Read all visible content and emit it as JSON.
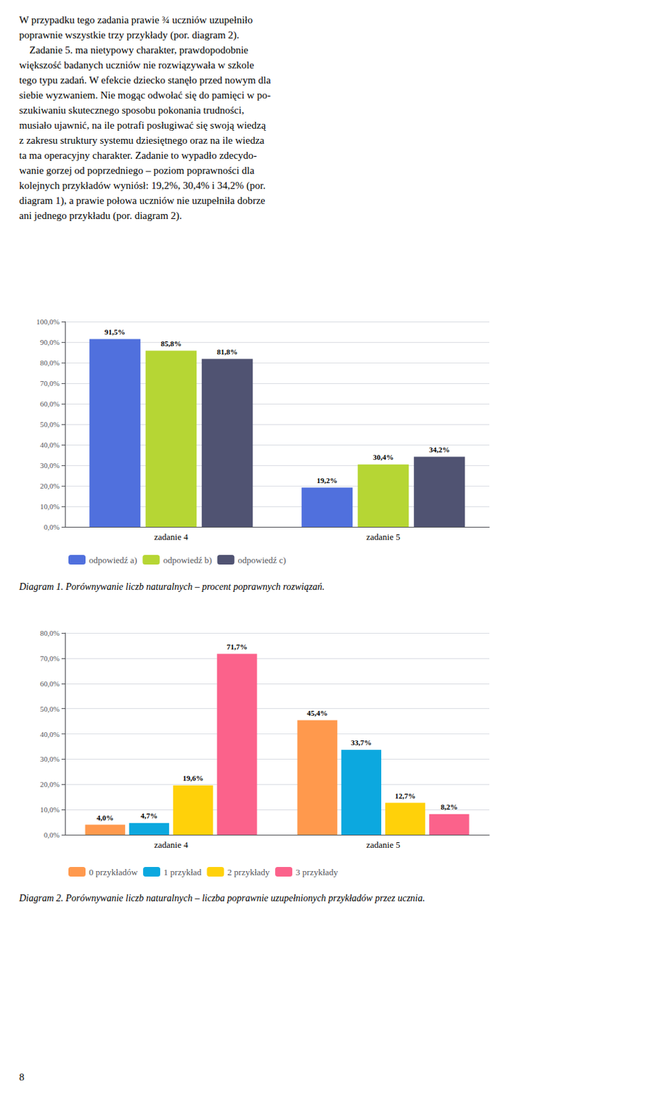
{
  "text": "W przypadku tego zadania prawie ¾ uczniów uzupełniło\npoprawnie wszystkie trzy przykłady (por. diagram 2).\n    Zadanie 5. ma nietypowy charakter, prawdopodobnie\nwiększość badanych uczniów nie rozwiązywała w szkole\ntego typu zadań. W efekcie dziecko stanęło przed nowym dla\nsiebie wyzwaniem. Nie mogąc odwołać się do pamięci w po-\nszukiwaniu skutecznego sposobu pokonania trudności,\nmusiało ujawnić, na ile potrafi posługiwać się swoją wiedzą\nz zakresu struktury systemu dziesiętnego oraz na ile wiedza\nta ma operacyjny charakter. Zadanie to wypadło zdecydo-\nwanie gorzej od poprzedniego – poziom poprawności dla\nkolejnych przykładów wyniósł: 19,2%, 30,4% i 34,2% (por.\ndiagram 1), a prawie połowa uczniów nie uzupełniła dobrze\nani jednego przykładu (por. diagram 2).",
  "page_number": "8",
  "chart_data": [
    {
      "type": "bar",
      "title": "Diagram 1. Porównywanie liczb naturalnych – procent poprawnych rozwiązań.",
      "categories": [
        "zadanie 4",
        "zadanie 5"
      ],
      "series": [
        {
          "name": "odpowiedź a)",
          "values": [
            91.5,
            19.2
          ],
          "value_labels": [
            "91,5%",
            "19,2%"
          ]
        },
        {
          "name": "odpowiedź b)",
          "values": [
            85.8,
            30.4
          ],
          "value_labels": [
            "85,8%",
            "30,4%"
          ]
        },
        {
          "name": "odpowiedź c)",
          "values": [
            81.8,
            34.2
          ],
          "value_labels": [
            "81,8%",
            "34,2%"
          ]
        }
      ],
      "ylim": [
        0,
        100
      ],
      "yticks": [
        {
          "value": 0,
          "label": "0,0%"
        },
        {
          "value": 10,
          "label": "10,0%"
        },
        {
          "value": 20,
          "label": "20,0%"
        },
        {
          "value": 30,
          "label": "30,0%"
        },
        {
          "value": 40,
          "label": "40,0%"
        },
        {
          "value": 50,
          "label": "50,0%"
        },
        {
          "value": 60,
          "label": "60,0%"
        },
        {
          "value": 70,
          "label": "70,0%"
        },
        {
          "value": 80,
          "label": "80,0%"
        },
        {
          "value": 90,
          "label": "90,0%"
        },
        {
          "value": 100,
          "label": "100,0%"
        }
      ],
      "grid": true,
      "legend": "bottom",
      "data_labels": true
    },
    {
      "type": "bar",
      "title": "Diagram 2. Porównywanie liczb naturalnych – liczba poprawnie uzupełnionych przykładów przez ucznia.",
      "categories": [
        "zadanie 4",
        "zadanie 5"
      ],
      "series": [
        {
          "name": "0 przykładów",
          "values": [
            4.0,
            45.4
          ],
          "value_labels": [
            "4,0%",
            "45,4%"
          ]
        },
        {
          "name": "1 przykład",
          "values": [
            4.7,
            33.7
          ],
          "value_labels": [
            "4,7%",
            "33,7%"
          ]
        },
        {
          "name": "2 przykłady",
          "values": [
            19.6,
            12.7
          ],
          "value_labels": [
            "19,6%",
            "12,7%"
          ]
        },
        {
          "name": "3 przykłady",
          "values": [
            71.7,
            8.2
          ],
          "value_labels": [
            "71,7%",
            "8,2%"
          ]
        }
      ],
      "ylim": [
        0,
        80
      ],
      "yticks": [
        {
          "value": 0,
          "label": "0,0%"
        },
        {
          "value": 10,
          "label": "10,0%"
        },
        {
          "value": 20,
          "label": "20,0%"
        },
        {
          "value": 30,
          "label": "30,0%"
        },
        {
          "value": 40,
          "label": "40,0%"
        },
        {
          "value": 50,
          "label": "50,0%"
        },
        {
          "value": 60,
          "label": "60,0%"
        },
        {
          "value": 70,
          "label": "70,0%"
        },
        {
          "value": 80,
          "label": "80,0%"
        }
      ],
      "grid": true,
      "legend": "bottom",
      "data_labels": true
    }
  ]
}
